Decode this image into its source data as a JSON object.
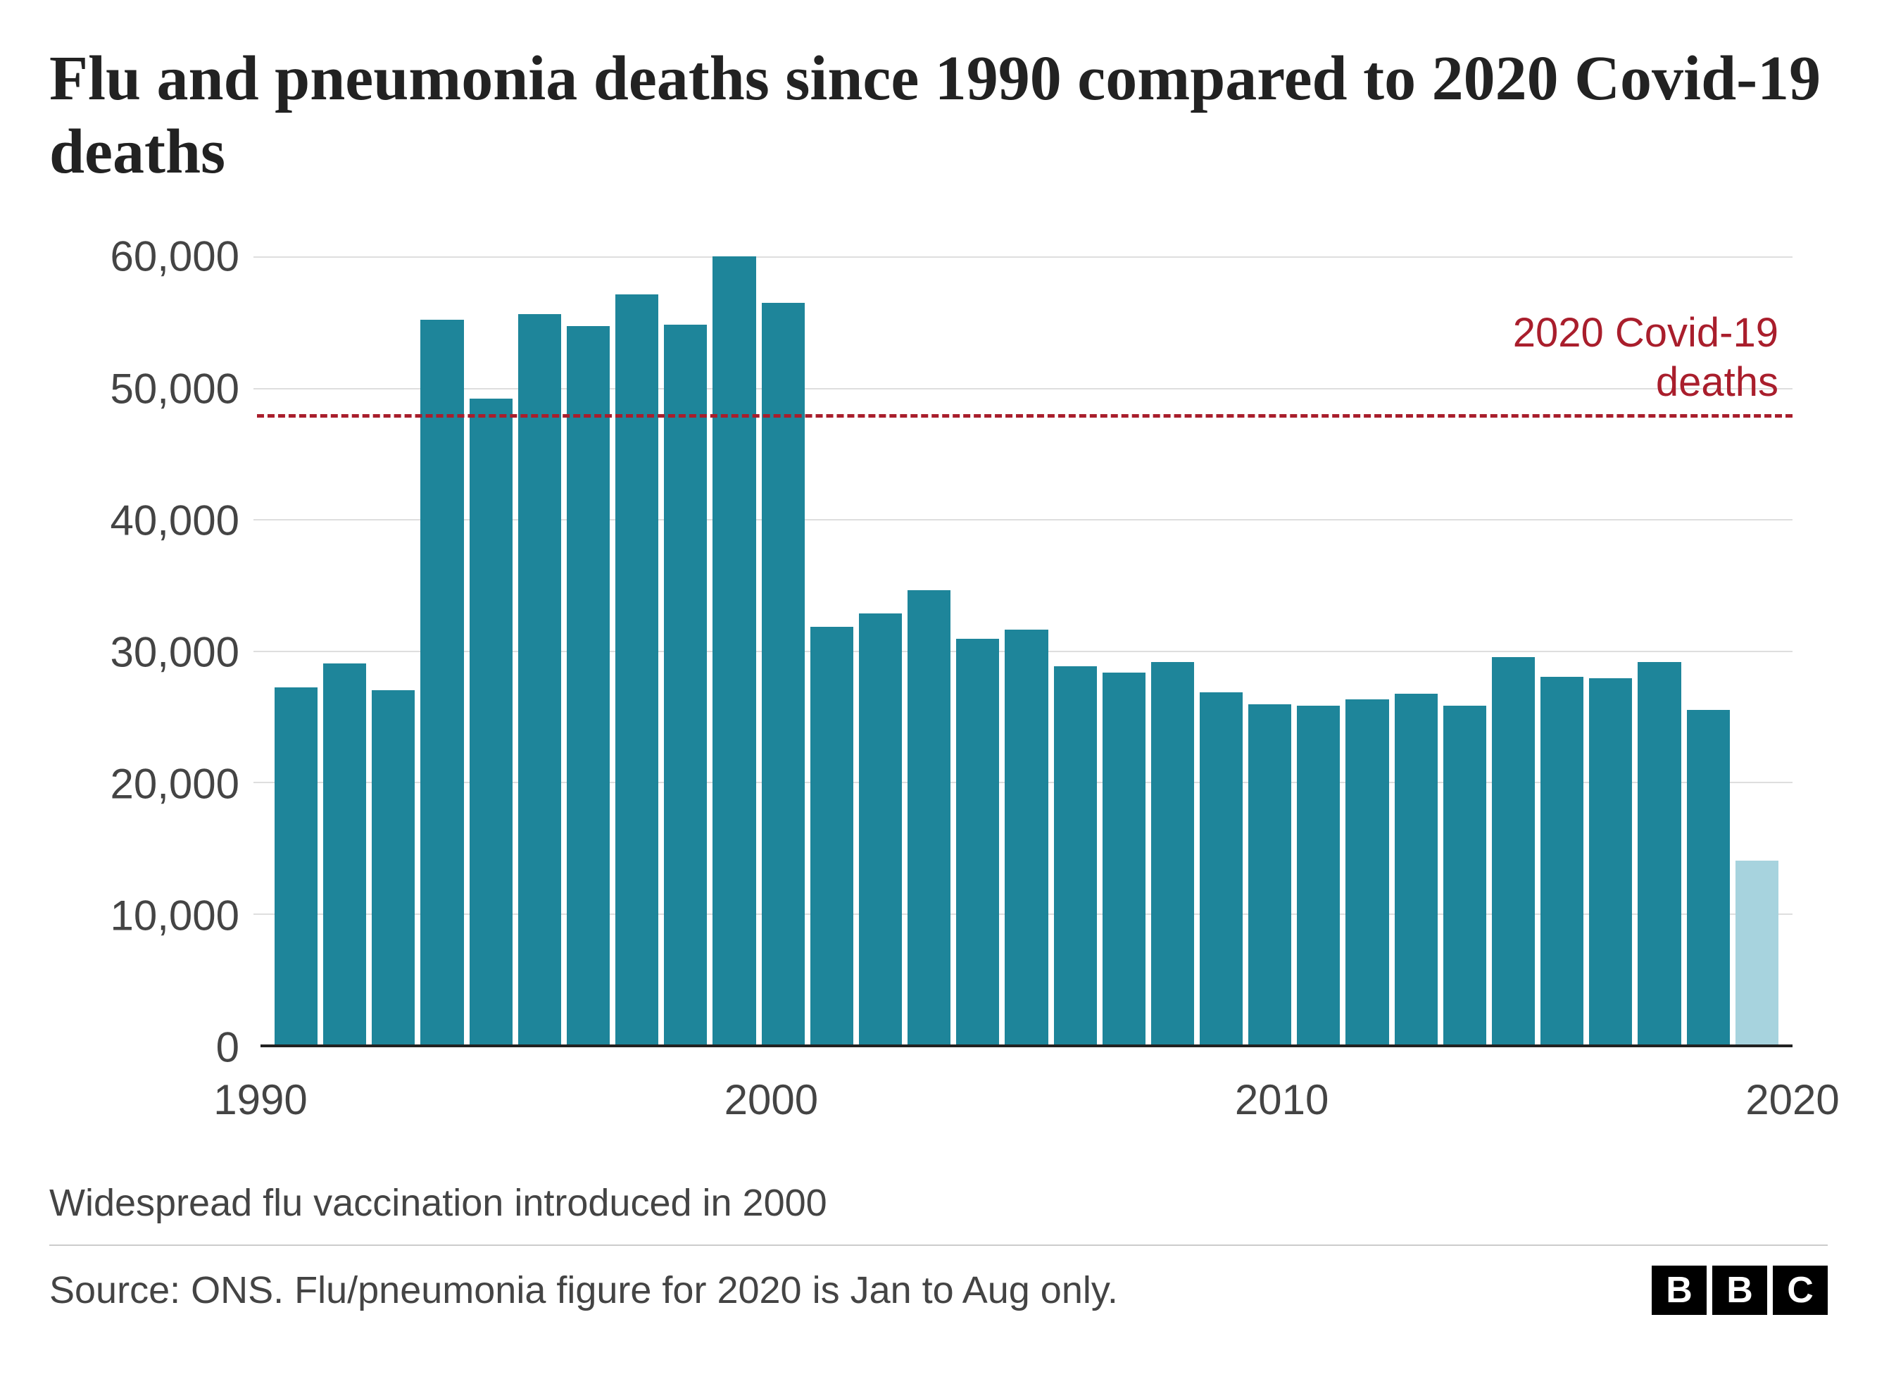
{
  "title": "Flu and pneumonia deaths since 1990 compared to 2020 Covid-19 deaths",
  "chart": {
    "type": "bar",
    "years": [
      1990,
      1991,
      1992,
      1993,
      1994,
      1995,
      1996,
      1997,
      1998,
      1999,
      2000,
      2001,
      2002,
      2003,
      2004,
      2005,
      2006,
      2007,
      2008,
      2009,
      2010,
      2011,
      2012,
      2013,
      2014,
      2015,
      2016,
      2017,
      2018,
      2019,
      2020
    ],
    "values": [
      27200,
      29000,
      27000,
      55200,
      49200,
      55600,
      54700,
      57100,
      54800,
      60000,
      56500,
      31800,
      32800,
      34600,
      30900,
      31600,
      28800,
      28300,
      29100,
      26800,
      25900,
      25800,
      26300,
      26700,
      25800,
      29500,
      28000,
      27900,
      29100,
      25500,
      14000
    ],
    "bar_color_default": "#1e859a",
    "bar_color_special": "#a7d3de",
    "special_index": 30,
    "y_ticks": [
      0,
      10000,
      20000,
      30000,
      40000,
      50000,
      60000
    ],
    "y_tick_labels": [
      "0",
      "10,000",
      "20,000",
      "30,000",
      "40,000",
      "50,000",
      "60,000"
    ],
    "y_max": 62000,
    "x_ticks": [
      1990,
      2000,
      2010,
      2020
    ],
    "x_tick_labels": [
      "1990",
      "2000",
      "2010",
      "2020"
    ],
    "grid_color": "#dedede",
    "axis_color": "#222222",
    "background_color": "#ffffff",
    "reference_line": {
      "value": 48000,
      "color": "#a91e2c",
      "label": "2020 Covid-19 deaths",
      "dash": true
    },
    "title_fontsize": 90,
    "tick_fontsize": 60
  },
  "note": "Widespread flu vaccination introduced in 2000",
  "source": "Source: ONS. Flu/pneumonia figure for 2020 is Jan to Aug only.",
  "logo_letters": [
    "B",
    "B",
    "C"
  ]
}
